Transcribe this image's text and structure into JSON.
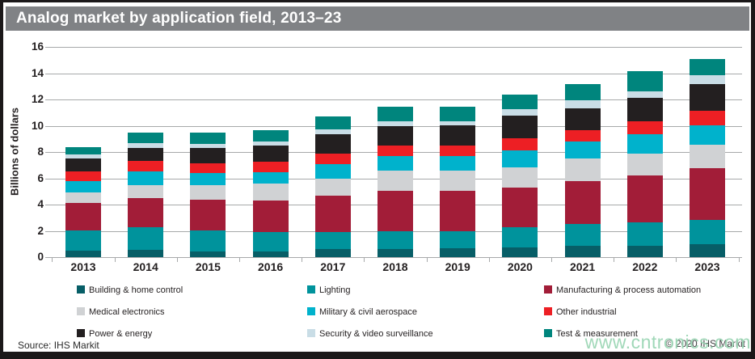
{
  "title": "Analog market by application field, 2013–23",
  "footer": {
    "source": "Source: IHS Markit",
    "copyright": "© 2020 IHS Markit"
  },
  "watermark": "www.cntronics.com",
  "colors": {
    "title_bar": "#808285",
    "grid": "#a7a9aa",
    "axis_text": "#231f20",
    "frame": "#1b1819"
  },
  "chart_data": {
    "type": "bar",
    "stacked": true,
    "title": "Analog market by application field, 2013–23",
    "xlabel": "",
    "ylabel": "Billions of dollars",
    "ylim": [
      0,
      16
    ],
    "ytick_interval": 2,
    "yticks": [
      0,
      2,
      4,
      6,
      8,
      10,
      12,
      14,
      16
    ],
    "grid": true,
    "legend_position": "bottom",
    "categories": [
      "2013",
      "2014",
      "2015",
      "2016",
      "2017",
      "2018",
      "2019",
      "2020",
      "2021",
      "2022",
      "2023"
    ],
    "series": [
      {
        "name": "Building & home control",
        "color": "#075e67",
        "values": [
          0.5,
          0.55,
          0.45,
          0.45,
          0.6,
          0.6,
          0.65,
          0.75,
          0.85,
          0.85,
          1.0
        ]
      },
      {
        "name": "Lighting",
        "color": "#00939c",
        "values": [
          1.55,
          1.7,
          1.6,
          1.45,
          1.3,
          1.4,
          1.35,
          1.5,
          1.65,
          1.8,
          1.85
        ]
      },
      {
        "name": "Manufacturing & process automation",
        "color": "#a21d38",
        "values": [
          2.05,
          2.25,
          2.3,
          2.4,
          2.75,
          3.05,
          3.05,
          3.05,
          3.3,
          3.55,
          3.9
        ]
      },
      {
        "name": "Medical electronics",
        "color": "#d0d2d4",
        "values": [
          0.85,
          1.0,
          1.15,
          1.3,
          1.35,
          1.55,
          1.55,
          1.55,
          1.7,
          1.65,
          1.8
        ]
      },
      {
        "name": "Military & civil aerospace",
        "color": "#00b2cc",
        "values": [
          0.85,
          1.0,
          0.9,
          0.85,
          1.05,
          1.1,
          1.1,
          1.25,
          1.3,
          1.5,
          1.5
        ]
      },
      {
        "name": "Other industrial",
        "color": "#ed1f24",
        "values": [
          0.75,
          0.8,
          0.75,
          0.8,
          0.85,
          0.8,
          0.8,
          0.95,
          0.85,
          1.0,
          1.1
        ]
      },
      {
        "name": "Power & energy",
        "color": "#231f20",
        "values": [
          0.95,
          1.0,
          1.15,
          1.25,
          1.45,
          1.5,
          1.55,
          1.75,
          1.7,
          1.75,
          2.05
        ]
      },
      {
        "name": "Security & video surveillance",
        "color": "#c9dde6",
        "values": [
          0.3,
          0.35,
          0.3,
          0.3,
          0.4,
          0.35,
          0.3,
          0.45,
          0.6,
          0.5,
          0.65
        ]
      },
      {
        "name": "Test & measurement",
        "color": "#00857d",
        "values": [
          0.55,
          0.8,
          0.85,
          0.85,
          0.95,
          1.1,
          1.1,
          1.15,
          1.2,
          1.55,
          1.25
        ]
      }
    ],
    "totals": [
      8.35,
      9.45,
      9.45,
      9.65,
      10.7,
      11.45,
      11.45,
      12.4,
      13.15,
      14.15,
      15.1
    ]
  }
}
